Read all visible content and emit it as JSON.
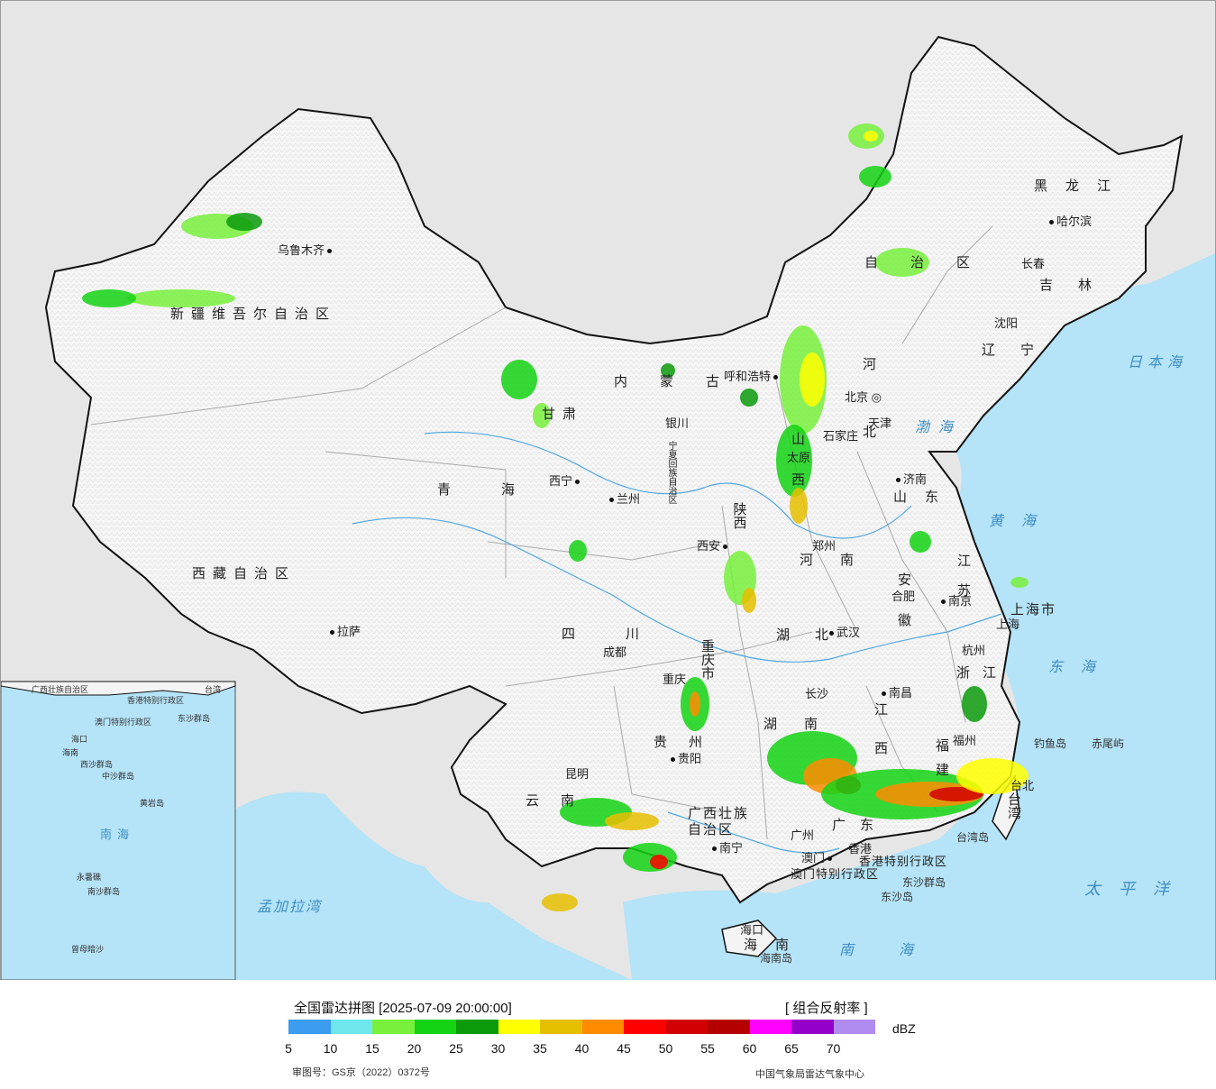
{
  "title": "全国雷达拼图 [2025-07-09 20:00:00]",
  "product": "[ 组合反射率 ]",
  "unit": "dBZ",
  "approval_number": "审图号：GS京（2022）0372号",
  "credit": "中国气象局雷达气象中心",
  "legend": {
    "colors": [
      "#3b9cf0",
      "#6ee6ee",
      "#78f03c",
      "#14d214",
      "#0a9a0a",
      "#ffff00",
      "#e6be00",
      "#ff8c00",
      "#ff0000",
      "#d20000",
      "#b40000",
      "#ff00ff",
      "#9400c8",
      "#b08cf0"
    ],
    "ticks": [
      "5",
      "10",
      "15",
      "20",
      "25",
      "30",
      "35",
      "40",
      "45",
      "50",
      "55",
      "60",
      "65",
      "70"
    ]
  },
  "colors": {
    "land": "#f4f4f4",
    "outside": "#e6e6e6",
    "sea": "#b5e3f7",
    "border": "#111111",
    "province_border": "#aaaaaa",
    "rivers": "#4fa8e0"
  },
  "cities": [
    {
      "id": "urumqi",
      "name": "乌鲁木齐",
      "dot_after": true
    },
    {
      "id": "lhasa",
      "name": "拉萨",
      "dot_after": false
    },
    {
      "id": "xining",
      "name": "西宁",
      "dot_after": true
    },
    {
      "id": "lanzhou",
      "name": "兰州",
      "dot_after": false
    },
    {
      "id": "yinchuan",
      "name": "银川",
      "dot_after": false
    },
    {
      "id": "hohhot",
      "name": "呼和浩特",
      "dot_after": true
    },
    {
      "id": "beijing",
      "name": "北京",
      "dot_after": false
    },
    {
      "id": "tianjin",
      "name": "天津",
      "dot_after": false
    },
    {
      "id": "shijiazhuang",
      "name": "石家庄",
      "dot_after": false
    },
    {
      "id": "taiyuan",
      "name": "太原",
      "dot_after": false
    },
    {
      "id": "jinan",
      "name": "济南",
      "dot_after": false
    },
    {
      "id": "zhengzhou",
      "name": "郑州",
      "dot_after": false
    },
    {
      "id": "xian",
      "name": "西安",
      "dot_after": true
    },
    {
      "id": "chengdu",
      "name": "成都",
      "dot_after": false
    },
    {
      "id": "chongqing",
      "name": "重庆",
      "dot_after": false
    },
    {
      "id": "wuhan",
      "name": "武汉",
      "dot_after": false
    },
    {
      "id": "hefei",
      "name": "合肥",
      "dot_after": false
    },
    {
      "id": "nanjing",
      "name": "南京",
      "dot_after": false
    },
    {
      "id": "shanghai",
      "name": "上海",
      "dot_after": false
    },
    {
      "id": "hangzhou",
      "name": "杭州",
      "dot_after": false
    },
    {
      "id": "changsha",
      "name": "长沙",
      "dot_after": false
    },
    {
      "id": "nanchang",
      "name": "南昌",
      "dot_after": false
    },
    {
      "id": "guiyang",
      "name": "贵阳",
      "dot_after": false
    },
    {
      "id": "kunming",
      "name": "昆明",
      "dot_after": false
    },
    {
      "id": "nanning",
      "name": "南宁",
      "dot_after": false
    },
    {
      "id": "guangzhou",
      "name": "广州",
      "dot_after": false
    },
    {
      "id": "fuzhou",
      "name": "福州",
      "dot_after": false
    },
    {
      "id": "taipei",
      "name": "台北",
      "dot_after": false
    },
    {
      "id": "haikou",
      "name": "海口",
      "dot_after": false
    },
    {
      "id": "hongkong",
      "name": "香港",
      "dot_after": false
    },
    {
      "id": "macau",
      "name": "澳门",
      "dot_after": true
    },
    {
      "id": "harbin",
      "name": "哈尔滨",
      "dot_after": false
    },
    {
      "id": "changchun",
      "name": "长春",
      "dot_after": false
    },
    {
      "id": "shenyang",
      "name": "沈阳",
      "dot_after": false
    }
  ],
  "provinces": [
    {
      "id": "xinjiang",
      "name": "新疆维吾尔自治区"
    },
    {
      "id": "xizang",
      "name": "西藏自治区"
    },
    {
      "id": "qinghai",
      "name": "青海"
    },
    {
      "id": "gansu",
      "name": "甘肃"
    },
    {
      "id": "neimenggu",
      "name": "内蒙古"
    },
    {
      "id": "neimenggu2",
      "name": "自治区"
    },
    {
      "id": "ningxia",
      "name": "宁夏回族自治区"
    },
    {
      "id": "shaanxi",
      "name": "陕西"
    },
    {
      "id": "shanxi",
      "name": "山西"
    },
    {
      "id": "hebei",
      "name": "河北"
    },
    {
      "id": "heilongjiang",
      "name": "黑龙江"
    },
    {
      "id": "jilin",
      "name": "吉林"
    },
    {
      "id": "liaoning",
      "name": "辽宁"
    },
    {
      "id": "shandong",
      "name": "山东"
    },
    {
      "id": "henan",
      "name": "河南"
    },
    {
      "id": "jiangsu",
      "name": "江苏"
    },
    {
      "id": "anhui",
      "name": "安徽"
    },
    {
      "id": "shanghai_shi",
      "name": "上海市"
    },
    {
      "id": "zhejiang",
      "name": "浙江"
    },
    {
      "id": "hubei",
      "name": "湖北"
    },
    {
      "id": "sichuan",
      "name": "四川"
    },
    {
      "id": "chongqing_shi",
      "name": "重庆市"
    },
    {
      "id": "hunan",
      "name": "湖南"
    },
    {
      "id": "jiangxi",
      "name": "江西"
    },
    {
      "id": "fujian",
      "name": "福建"
    },
    {
      "id": "guizhou",
      "name": "贵州"
    },
    {
      "id": "yunnan",
      "name": "云南"
    },
    {
      "id": "guangxi",
      "name": "广西壮族自治区"
    },
    {
      "id": "guangdong",
      "name": "广东"
    },
    {
      "id": "hainan",
      "name": "海南"
    },
    {
      "id": "taiwan",
      "name": "台湾"
    },
    {
      "id": "hk_sar",
      "name": "香港特别行政区"
    },
    {
      "id": "macau_sar",
      "name": "澳门特别行政区"
    }
  ],
  "seas": [
    {
      "id": "japan-sea",
      "name": "日本海"
    },
    {
      "id": "bohai",
      "name": "渤海"
    },
    {
      "id": "yellow-sea",
      "name": "黄海"
    },
    {
      "id": "east-sea",
      "name": "东海"
    },
    {
      "id": "pacific",
      "name": "太平洋"
    },
    {
      "id": "south-sea",
      "name": "南海"
    },
    {
      "id": "bengal",
      "name": "孟加拉湾"
    }
  ],
  "islands": [
    {
      "id": "diaoyu",
      "name": "钓鱼岛"
    },
    {
      "id": "chiwei",
      "name": "赤尾屿"
    },
    {
      "id": "taiwan-island",
      "name": "台湾岛"
    },
    {
      "id": "dongsha-qundao",
      "name": "东沙群岛"
    },
    {
      "id": "dongsha-dao",
      "name": "东沙岛"
    },
    {
      "id": "hainan-island",
      "name": "海南岛"
    }
  ],
  "inset": {
    "labels": [
      "广西壮族自治区",
      "台湾",
      "香港特别行政区",
      "澳门特别行政区",
      "东沙群岛",
      "海口",
      "海南",
      "西沙群岛",
      "中沙群岛",
      "黄岩岛",
      "南海",
      "永暑礁",
      "南沙群岛",
      "曾母暗沙"
    ]
  }
}
